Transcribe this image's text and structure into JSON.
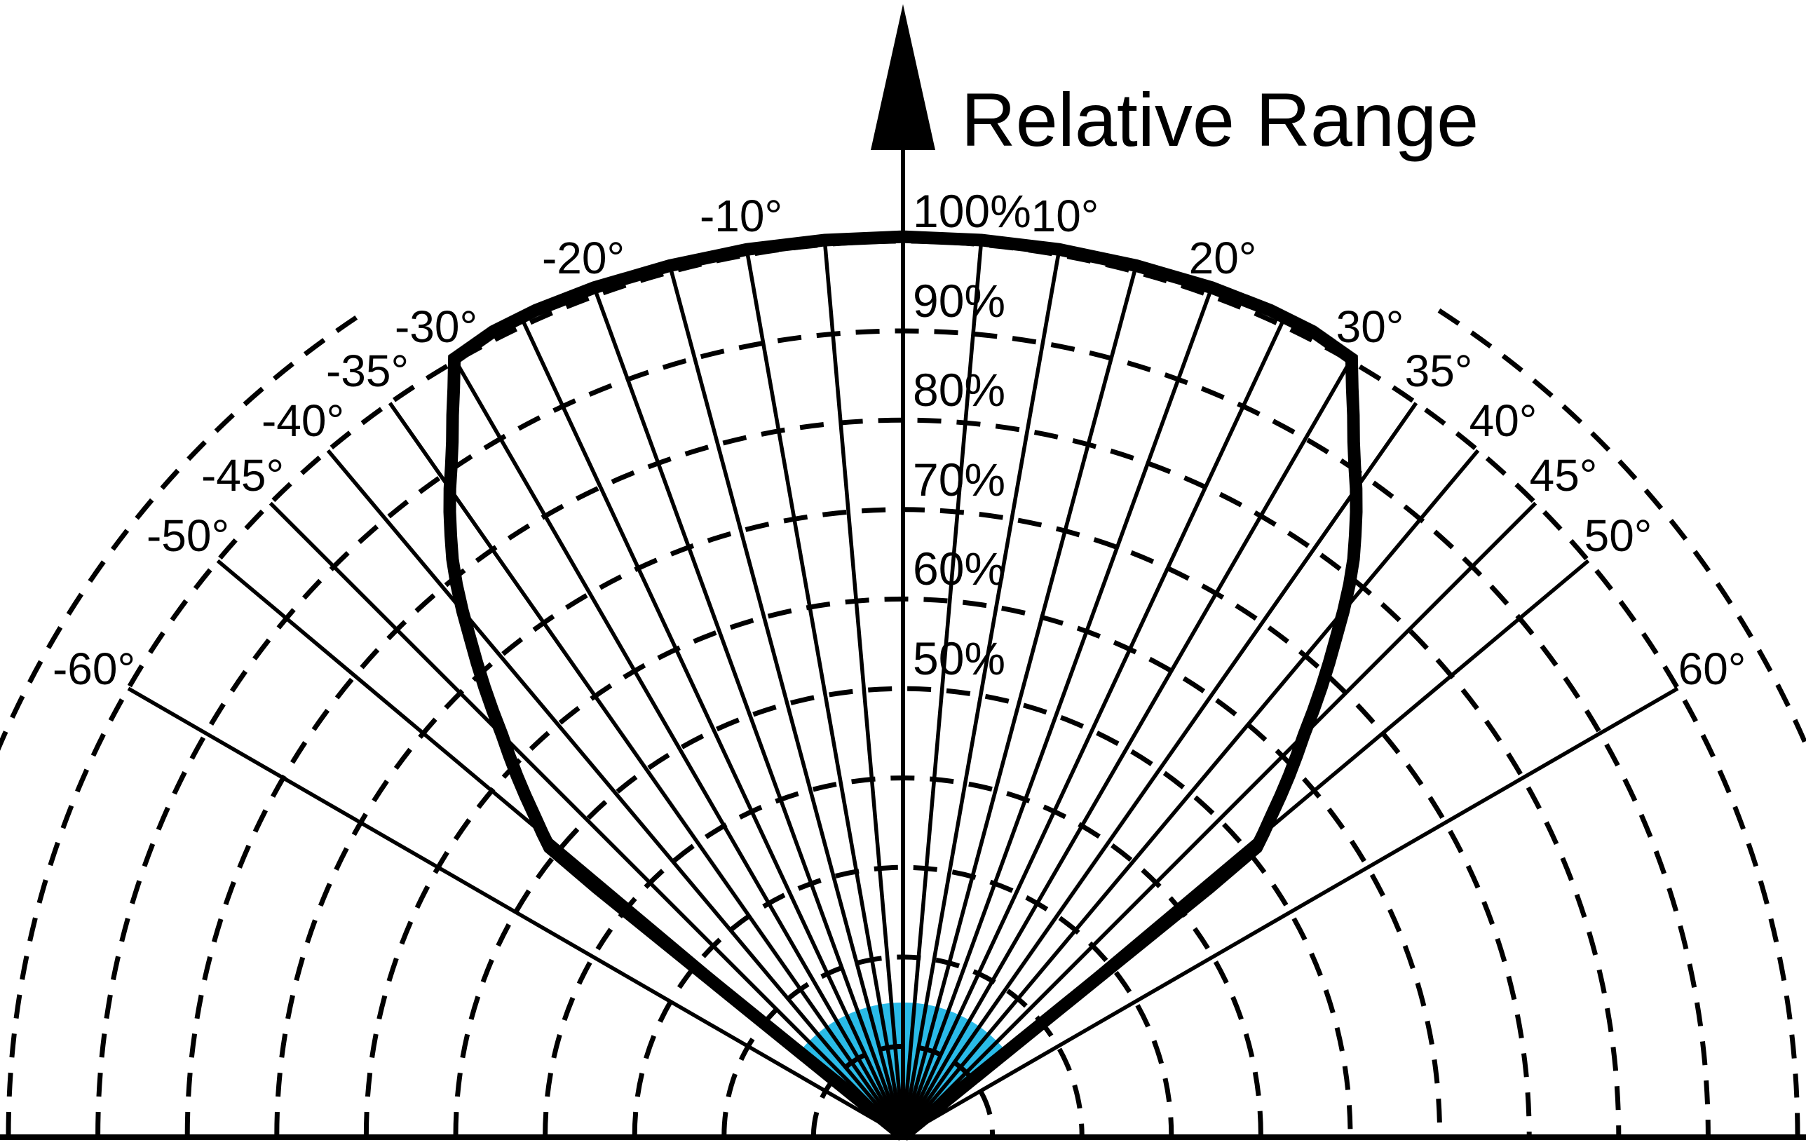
{
  "title": "Relative Range",
  "colors": {
    "ink": "#000000",
    "background": "#ffffff",
    "beam_fill": "#2ABBE8"
  },
  "chart_data": {
    "type": "polar-beam-pattern",
    "title": "Relative Range",
    "orientation": "upper-half-plane, 0 degrees points up",
    "radial_axis": {
      "unit": "%",
      "arrow_label": "Relative Range",
      "tick_labels": [
        "100%",
        "90%",
        "80%",
        "70%",
        "60%",
        "50%"
      ],
      "tick_values_pct": [
        100,
        90,
        80,
        70,
        60,
        50
      ],
      "grid_rings_pct": [
        10,
        20,
        30,
        40,
        50,
        60,
        70,
        80,
        90,
        100,
        110
      ],
      "outer_ring_pct": 110,
      "outer_ring_visible_beyond_deg": 33,
      "grid_style": "dashed"
    },
    "angle_axis": {
      "unit": "deg",
      "labels": [
        {
          "deg": -60,
          "text": "-60°"
        },
        {
          "deg": -50,
          "text": "-50°"
        },
        {
          "deg": -45,
          "text": "-45°"
        },
        {
          "deg": -40,
          "text": "-40°"
        },
        {
          "deg": -35,
          "text": "-35°"
        },
        {
          "deg": -30,
          "text": "-30°"
        },
        {
          "deg": -20,
          "text": "-20°"
        },
        {
          "deg": -10,
          "text": "-10°"
        },
        {
          "deg": 10,
          "text": "10°"
        },
        {
          "deg": 20,
          "text": "20°"
        },
        {
          "deg": 30,
          "text": "30°"
        },
        {
          "deg": 35,
          "text": "35°"
        },
        {
          "deg": 40,
          "text": "40°"
        },
        {
          "deg": 45,
          "text": "45°"
        },
        {
          "deg": 50,
          "text": "50°"
        },
        {
          "deg": 60,
          "text": "60°"
        }
      ],
      "minor_lines_deg": [
        -30,
        -25,
        -20,
        -15,
        -10,
        -5,
        5,
        10,
        15,
        20,
        25,
        30
      ],
      "major_lines_deg": [
        -60,
        -50,
        -45,
        -40,
        -35,
        35,
        40,
        45,
        50,
        60
      ]
    },
    "envelope_polar_right_half": [
      [
        0,
        100.5
      ],
      [
        5,
        100.5
      ],
      [
        10,
        100.6
      ],
      [
        15,
        100.7
      ],
      [
        20,
        100.9
      ],
      [
        24,
        101.0
      ],
      [
        27,
        100.9
      ],
      [
        30,
        100.3
      ],
      [
        31,
        97.5
      ],
      [
        32,
        95.0
      ],
      [
        33,
        92.5
      ],
      [
        34,
        90.3
      ],
      [
        35,
        88.3
      ],
      [
        36,
        86.2
      ],
      [
        37,
        84.0
      ],
      [
        38,
        81.8
      ],
      [
        39,
        79.3
      ],
      [
        40,
        76.6
      ],
      [
        41,
        73.8
      ],
      [
        42,
        71.2
      ],
      [
        43,
        68.6
      ],
      [
        44,
        66.0
      ],
      [
        45,
        63.4
      ],
      [
        46,
        61.2
      ],
      [
        47,
        59.0
      ],
      [
        48,
        56.8
      ],
      [
        49,
        54.6
      ],
      [
        50,
        52.6
      ],
      [
        50.8,
        51.0
      ],
      [
        51.0,
        44.0
      ],
      [
        51.0,
        0.0
      ]
    ],
    "envelope_symmetric": true,
    "beam_fill": {
      "half_span_deg": 50.8,
      "radius_pct": 14.9,
      "color": "#2ABBE8"
    }
  }
}
